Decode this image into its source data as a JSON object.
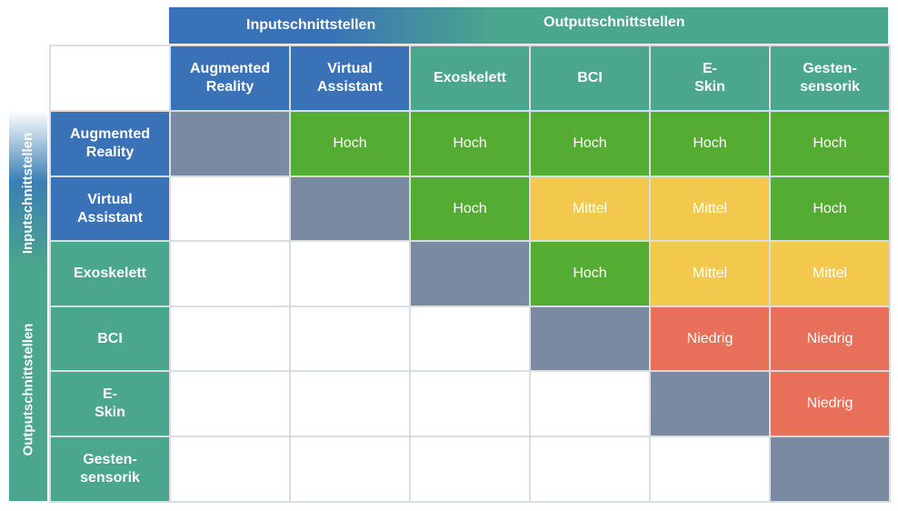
{
  "groups": {
    "input": "Inputschnittstellen",
    "output": "Outputschnittstellen"
  },
  "columns": [
    "Augmented Reality",
    "Virtual Assistant",
    "Exoskelett",
    "BCI",
    "E-Skin",
    "Gesten-sensorik"
  ],
  "rows": [
    {
      "label": "Augmented Reality",
      "cells": [
        "",
        "Hoch",
        "Hoch",
        "Hoch",
        "Hoch",
        "Hoch"
      ]
    },
    {
      "label": "Virtual Assistant",
      "cells": [
        "",
        "",
        "Hoch",
        "Mittel",
        "Mittel",
        "Hoch"
      ]
    },
    {
      "label": "Exoskelett",
      "cells": [
        "",
        "",
        "",
        "Hoch",
        "Mittel",
        "Mittel"
      ]
    },
    {
      "label": "BCI",
      "cells": [
        "",
        "",
        "",
        "",
        "Niedrig",
        "Niedrig"
      ]
    },
    {
      "label": "E-Skin",
      "cells": [
        "",
        "",
        "",
        "",
        "",
        "Niedrig"
      ]
    },
    {
      "label": "Gesten-sensorik",
      "cells": [
        "",
        "",
        "",
        "",
        "",
        ""
      ]
    }
  ],
  "colors": {
    "Hoch": "#54ad32",
    "Mittel": "#f2c94c",
    "Niedrig": "#e8705a",
    "diagonal": "#7a8aa0",
    "input_header": "#3a72b8",
    "output_header": "#4aa68c"
  }
}
